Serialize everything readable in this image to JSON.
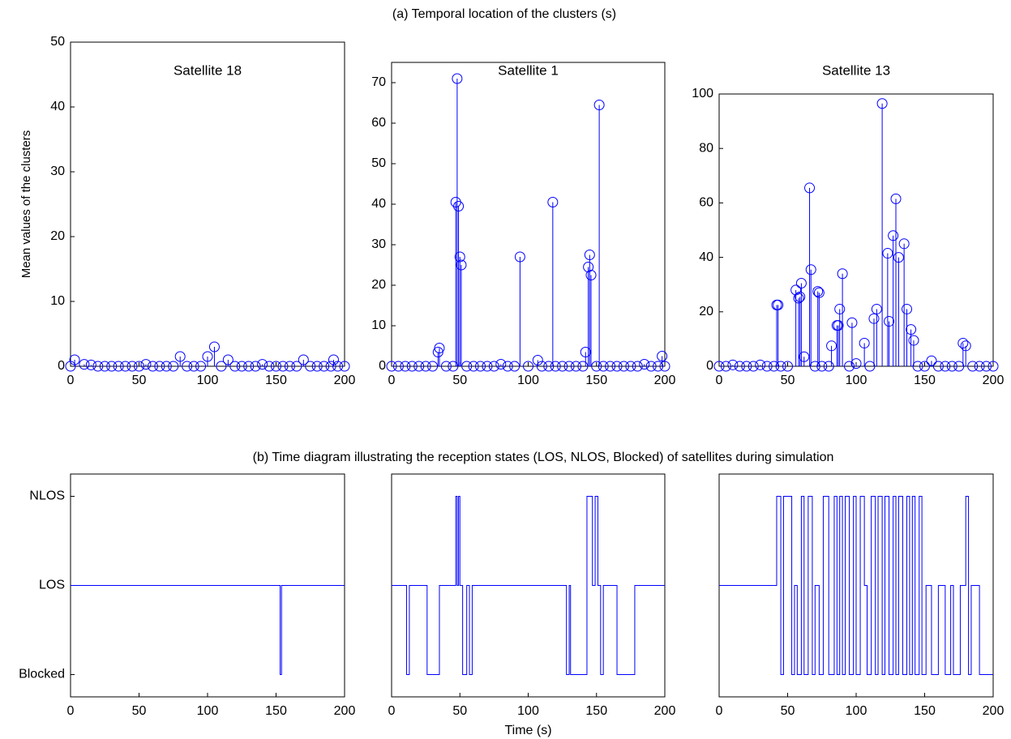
{
  "section_titles": [
    "(a)   Temporal location of the clusters (s)",
    "(b)   Time diagram illustrating the reception states (LOS, NLOS, Blocked) of satellites during simulation"
  ],
  "chart_data": [
    {
      "type": "stem",
      "title": "Satellite 18",
      "y_label": "Mean values of the clusters",
      "color": "#0000ff",
      "xlim": [
        0,
        200
      ],
      "xticks": [
        0,
        50,
        100,
        150,
        200
      ],
      "ylim": [
        0,
        50
      ],
      "yticks": [
        0,
        10,
        20,
        30,
        40,
        50
      ],
      "x": [
        0,
        3,
        10,
        15,
        20,
        25,
        30,
        35,
        40,
        45,
        50,
        55,
        60,
        65,
        70,
        75,
        80,
        85,
        90,
        95,
        100,
        105,
        110,
        115,
        120,
        125,
        130,
        135,
        140,
        145,
        150,
        155,
        160,
        165,
        170,
        175,
        180,
        185,
        190,
        192,
        195,
        200
      ],
      "values": [
        0,
        1,
        0.3,
        0.2,
        0,
        0,
        0,
        0,
        0,
        0,
        0,
        0.3,
        0,
        0,
        0,
        0,
        1.5,
        0,
        0,
        0,
        1.5,
        3,
        0,
        1,
        0,
        0,
        0,
        0,
        0.3,
        0,
        0,
        0,
        0,
        0,
        1,
        0,
        0,
        0,
        0,
        1,
        0,
        0
      ]
    },
    {
      "type": "stem",
      "title": "Satellite 1",
      "color": "#0000ff",
      "xlim": [
        0,
        200
      ],
      "xticks": [
        0,
        50,
        100,
        150,
        200
      ],
      "ylim": [
        0,
        75
      ],
      "yticks": [
        0,
        10,
        20,
        30,
        40,
        50,
        60,
        70
      ],
      "x": [
        0,
        5,
        10,
        15,
        20,
        25,
        30,
        34,
        35,
        40,
        45,
        47,
        48,
        49,
        50,
        51,
        55,
        60,
        65,
        70,
        75,
        80,
        85,
        90,
        94,
        100,
        107,
        110,
        115,
        118,
        120,
        125,
        130,
        135,
        140,
        142,
        144,
        145,
        146,
        150,
        152,
        155,
        160,
        165,
        170,
        175,
        180,
        185,
        190,
        195,
        198,
        200
      ],
      "values": [
        0,
        0,
        0,
        0,
        0,
        0,
        0,
        3.5,
        4.5,
        0,
        0,
        40.5,
        71,
        39.5,
        27,
        25,
        0,
        0,
        0,
        0,
        0,
        0.5,
        0,
        0,
        27,
        0,
        1.5,
        0,
        0,
        40.5,
        0,
        0,
        0,
        0,
        0,
        3.5,
        24.5,
        27.5,
        22.5,
        0,
        64.5,
        0,
        0,
        0,
        0,
        0,
        0,
        0.5,
        0,
        0,
        2.5,
        0
      ]
    },
    {
      "type": "stem",
      "title": "Satellite 13",
      "color": "#0000ff",
      "xlim": [
        0,
        200
      ],
      "xticks": [
        0,
        50,
        100,
        150,
        200
      ],
      "ylim": [
        0,
        100
      ],
      "yticks": [
        0,
        20,
        40,
        60,
        80,
        100
      ],
      "x": [
        0,
        5,
        10,
        15,
        20,
        25,
        30,
        35,
        40,
        42,
        43,
        45,
        50,
        56,
        58,
        59,
        60,
        62,
        66,
        67,
        70,
        72,
        73,
        75,
        80,
        82,
        86,
        87,
        88,
        90,
        95,
        97,
        100,
        106,
        110,
        113,
        115,
        119,
        123,
        124,
        127,
        129,
        131,
        135,
        137,
        140,
        142,
        145,
        150,
        155,
        160,
        165,
        170,
        175,
        178,
        180,
        185,
        190,
        195,
        200
      ],
      "values": [
        0,
        0,
        0.5,
        0,
        0,
        0,
        0.5,
        0,
        0,
        22.5,
        22.5,
        0,
        0,
        28,
        25,
        25.5,
        30.5,
        3.5,
        65.5,
        35.5,
        0,
        27.5,
        27,
        0,
        0,
        7.5,
        15,
        15,
        21,
        34,
        0,
        16,
        1,
        8.5,
        0,
        17.5,
        21,
        96.5,
        41.5,
        16.5,
        48,
        61.5,
        40,
        45,
        21,
        13.5,
        9.5,
        0,
        0,
        2,
        0,
        0,
        0,
        0,
        8.5,
        7.5,
        0,
        0,
        0,
        0
      ]
    },
    {
      "type": "step",
      "color": "#0000ff",
      "xlim": [
        0,
        200
      ],
      "xticks": [
        0,
        50,
        100,
        150,
        200
      ],
      "ylim": [
        -0.25,
        2.25
      ],
      "yticks": [
        {
          "value": 0,
          "label": "Blocked"
        },
        {
          "value": 1,
          "label": "LOS"
        },
        {
          "value": 2,
          "label": "NLOS"
        }
      ],
      "x": [
        0,
        153,
        154,
        200
      ],
      "values": [
        1,
        0,
        1,
        1
      ]
    },
    {
      "type": "step",
      "color": "#0000ff",
      "x_label": "Time (s)",
      "xlim": [
        0,
        200
      ],
      "xticks": [
        0,
        50,
        100,
        150,
        200
      ],
      "ylim": [
        -0.25,
        2.25
      ],
      "x": [
        0,
        11,
        13,
        26,
        35,
        47,
        48,
        49,
        50,
        52,
        55,
        57,
        59,
        128,
        130,
        131,
        133,
        143,
        147,
        149,
        151,
        153,
        155,
        157,
        165,
        178,
        200
      ],
      "values": [
        1,
        0,
        1,
        0,
        1,
        2,
        1,
        2,
        1,
        0,
        1,
        0,
        1,
        0,
        1,
        0,
        0,
        2,
        1,
        2,
        1,
        0,
        1,
        1,
        0,
        1,
        1
      ]
    },
    {
      "type": "step",
      "color": "#0000ff",
      "xlim": [
        0,
        200
      ],
      "xticks": [
        0,
        50,
        100,
        150,
        200
      ],
      "ylim": [
        -0.25,
        2.25
      ],
      "x": [
        0,
        42,
        45,
        47,
        53,
        55,
        57,
        60,
        62,
        65,
        68,
        70,
        73,
        76,
        80,
        84,
        86,
        88,
        90,
        92,
        95,
        98,
        100,
        103,
        106,
        108,
        111,
        114,
        116,
        119,
        121,
        124,
        127,
        129,
        131,
        134,
        137,
        139,
        141,
        143,
        146,
        148,
        151,
        155,
        160,
        165,
        169,
        171,
        176,
        180,
        182,
        184,
        190,
        200
      ],
      "values": [
        1,
        2,
        0,
        2,
        0,
        1,
        0,
        2,
        0,
        2,
        0,
        1,
        0,
        2,
        0,
        2,
        0,
        2,
        0,
        2,
        0,
        2,
        0,
        2,
        1,
        0,
        2,
        0,
        2,
        0,
        2,
        0,
        2,
        0,
        2,
        0,
        2,
        0,
        2,
        0,
        2,
        0,
        1,
        0,
        1,
        0,
        1,
        0,
        1,
        2,
        0,
        1,
        0,
        0
      ]
    }
  ]
}
